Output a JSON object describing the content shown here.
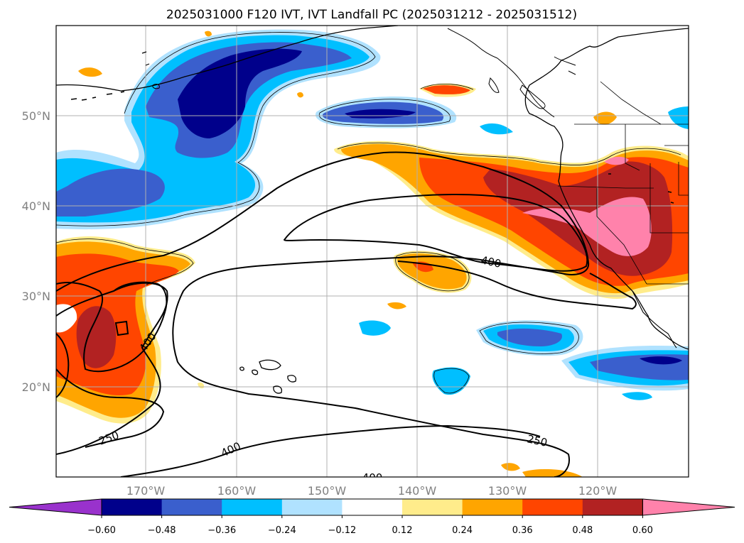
{
  "title": "2025031000 F120 IVT, IVT Landfall PC (2025031212 - 2025031512)",
  "map": {
    "lon_labels": [
      "170°W",
      "160°W",
      "150°W",
      "140°W",
      "130°W",
      "120°W"
    ],
    "lat_labels": [
      "50°N",
      "40°N",
      "30°N",
      "20°N"
    ],
    "contour_labels": [
      "400",
      "400",
      "250",
      "250",
      "400",
      "400"
    ]
  },
  "colorbar": {
    "colors": [
      "#9932cc",
      "#00008b",
      "#3a5fcd",
      "#00bfff",
      "#b0e2ff",
      "#ffffff",
      "#ffec8b",
      "#ffa500",
      "#ff4500",
      "#b22222",
      "#ff82ab"
    ],
    "ticks": [
      "−0.60",
      "−0.48",
      "−0.36",
      "−0.24",
      "−0.12",
      "0.12",
      "0.24",
      "0.36",
      "0.48",
      "0.60"
    ]
  },
  "colors": {
    "graticule": "#b0b0b0",
    "coast": "#000000",
    "contour": "#000000"
  }
}
